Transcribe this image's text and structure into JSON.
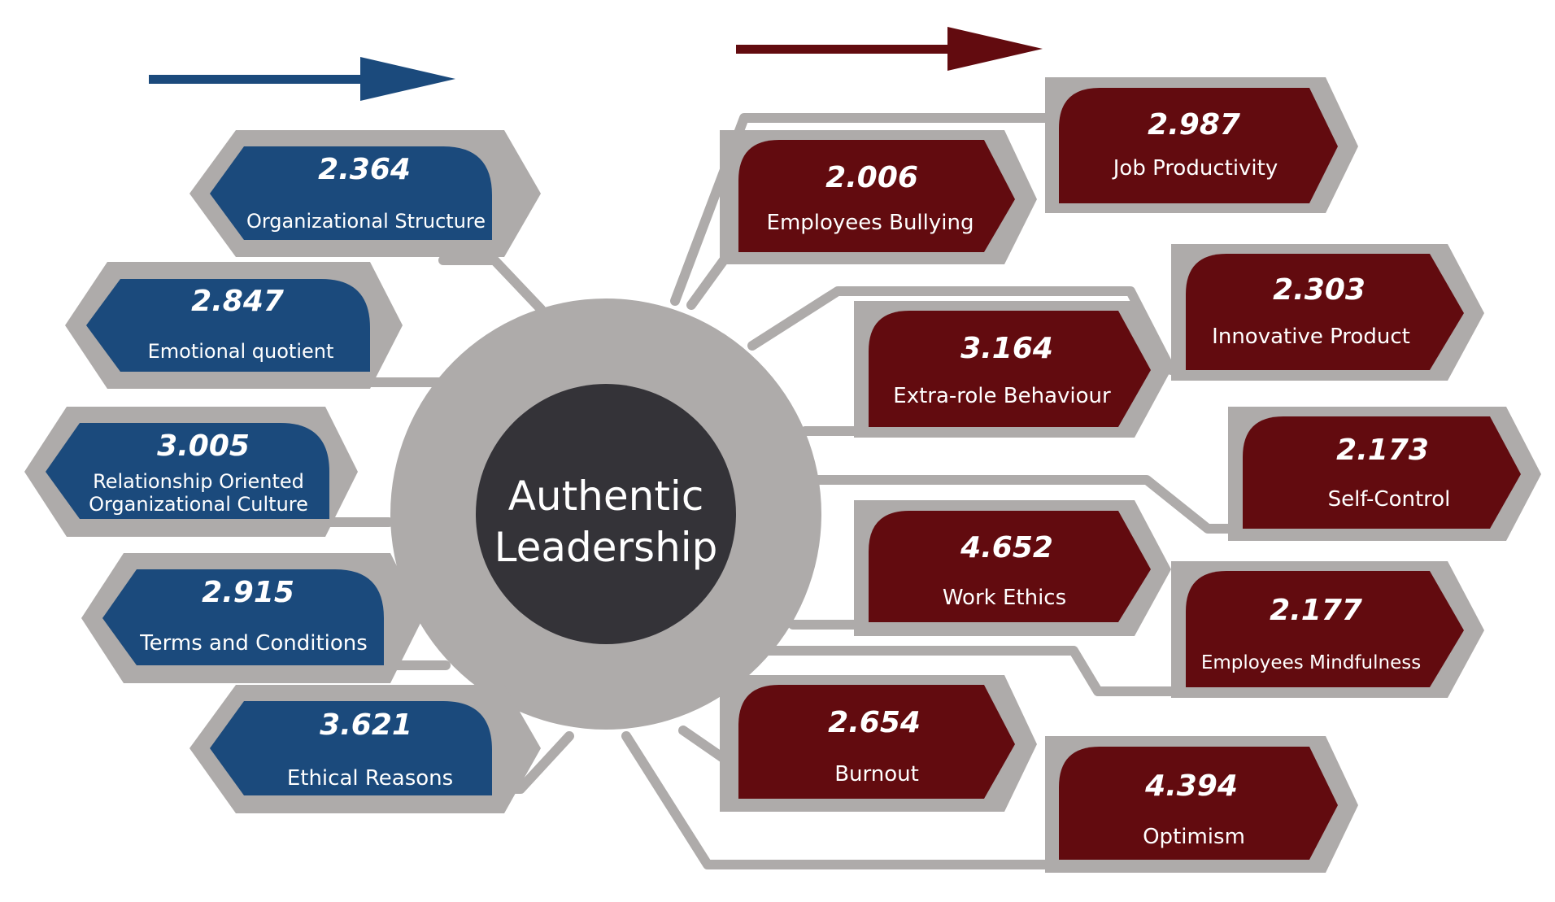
{
  "center": {
    "line1": "Authentic",
    "line2": "Leadership"
  },
  "colors": {
    "blue": "#1b4a7c",
    "maroon": "#620b0f",
    "gray": "#aeabaa",
    "center": "#343338"
  },
  "left_nodes": [
    {
      "value": "2.364",
      "label": "Organizational Structure"
    },
    {
      "value": "2.847",
      "label": "Emotional quotient"
    },
    {
      "value": "3.005",
      "label_line1": "Relationship Oriented",
      "label_line2": "Organizational Culture"
    },
    {
      "value": "2.915",
      "label": "Terms and Conditions"
    },
    {
      "value": "3.621",
      "label": "Ethical Reasons"
    }
  ],
  "right_nodes": [
    {
      "value": "2.987",
      "label": "Job Productivity"
    },
    {
      "value": "2.006",
      "label": "Employees Bullying"
    },
    {
      "value": "2.303",
      "label": "Innovative Product"
    },
    {
      "value": "3.164",
      "label": "Extra-role Behaviour"
    },
    {
      "value": "2.173",
      "label": "Self-Control"
    },
    {
      "value": "4.652",
      "label": "Work Ethics"
    },
    {
      "value": "2.177",
      "label": "Employees Mindfulness"
    },
    {
      "value": "2.654",
      "label": "Burnout"
    },
    {
      "value": "4.394",
      "label": "Optimism"
    }
  ]
}
